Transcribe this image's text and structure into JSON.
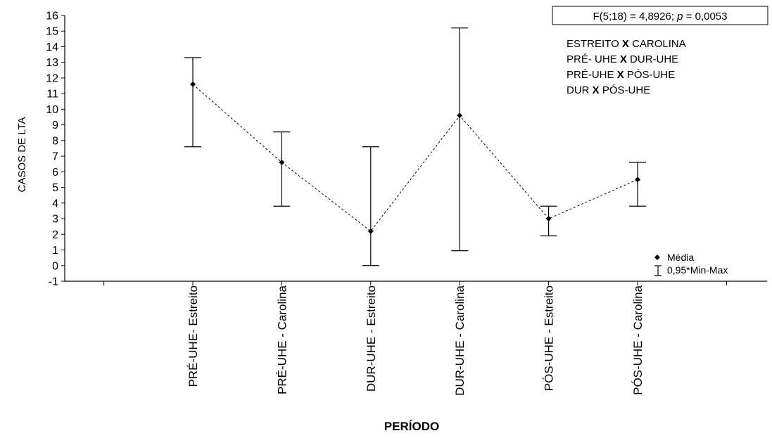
{
  "chart_data": {
    "type": "line",
    "xlabel": "PERÍODO",
    "ylabel": "CASOS DE LTA",
    "ylim": [
      -1,
      16
    ],
    "yticks": [
      -1,
      0,
      1,
      2,
      3,
      4,
      5,
      6,
      7,
      8,
      9,
      10,
      11,
      12,
      13,
      14,
      15,
      16
    ],
    "categories": [
      "PRÉ-UHE- Estreito",
      "PRÉ-UHE - Carolina",
      "DUR-UHE - Estreito",
      "DUR-UHE - Carolina",
      "PÓS-UHE - Estreito",
      "PÓS-UHE - Carolina"
    ],
    "mean": [
      11.6,
      6.6,
      2.2,
      9.6,
      3.0,
      5.5
    ],
    "min": [
      7.6,
      3.8,
      0.0,
      0.95,
      1.9,
      3.8
    ],
    "max": [
      13.3,
      8.55,
      7.6,
      15.2,
      3.8,
      6.6
    ],
    "stat_box": {
      "prefix": "F(5;18) = 4,8926; ",
      "p_symbol": "p",
      "suffix": " = 0,0053"
    },
    "comparisons": [
      {
        "left": "ESTREITO",
        "x": "X",
        "right": "CAROLINA"
      },
      {
        "left": "PRÉ- UHE",
        "x": "X",
        "right": "DUR-UHE"
      },
      {
        "left": "PRÉ-UHE",
        "x": "X",
        "right": "PÓS-UHE"
      },
      {
        "left": "DUR",
        "x": "X",
        "right": "PÓS-UHE"
      }
    ],
    "legend": {
      "mean_label": "Média",
      "range_label": "0,95*Min-Max",
      "position": "right"
    },
    "colors": {
      "line": "#000000",
      "marker": "#000000"
    }
  }
}
